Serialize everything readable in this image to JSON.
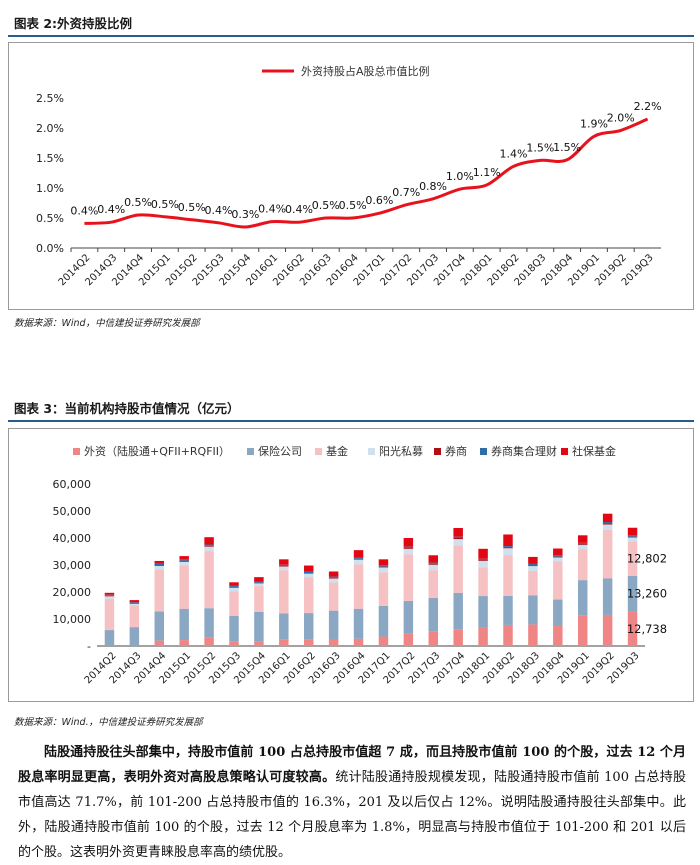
{
  "fig2": {
    "caption": "图表 2:外资持股比例",
    "source": "数据来源：Wind，中信建投证券研究发展部",
    "chart_data": {
      "type": "line",
      "title": "",
      "xlabel": "",
      "ylabel": "",
      "ylim": [
        0,
        2.5
      ],
      "yticks": [
        "0.0%",
        "0.5%",
        "1.0%",
        "1.5%",
        "2.0%",
        "2.5%"
      ],
      "categories": [
        "2014Q2",
        "2014Q3",
        "2014Q4",
        "2015Q1",
        "2015Q2",
        "2015Q3",
        "2015Q4",
        "2016Q1",
        "2016Q2",
        "2016Q3",
        "2016Q4",
        "2017Q1",
        "2017Q2",
        "2017Q3",
        "2017Q4",
        "2018Q1",
        "2018Q2",
        "2018Q3",
        "2018Q4",
        "2019Q1",
        "2019Q2",
        "2019Q3"
      ],
      "series": [
        {
          "name": "外资持股占A股总市值比例",
          "color": "#e8121d",
          "values": [
            0.41,
            0.43,
            0.55,
            0.52,
            0.47,
            0.42,
            0.35,
            0.44,
            0.43,
            0.5,
            0.5,
            0.58,
            0.72,
            0.82,
            0.98,
            1.05,
            1.36,
            1.46,
            1.47,
            1.86,
            1.96,
            2.15
          ],
          "labels": [
            "0.4%",
            "0.4%",
            "0.5%",
            "0.5%",
            "0.5%",
            "0.4%",
            "0.3%",
            "0.4%",
            "0.4%",
            "0.5%",
            "0.5%",
            "0.6%",
            "0.7%",
            "0.8%",
            "1.0%",
            "1.1%",
            "1.4%",
            "1.5%",
            "1.5%",
            "1.9%",
            "2.0%",
            "2.2%"
          ]
        }
      ],
      "legend": "top-center"
    }
  },
  "fig3": {
    "caption": "图表 3：当前机构持股市值情况（亿元）",
    "source": "数据来源：Wind.，中信建投证券研究发展部",
    "chart_data": {
      "type": "bar",
      "stacked": true,
      "title": "",
      "xlabel": "",
      "ylabel": "",
      "ylim": [
        0,
        60000
      ],
      "yticks": [
        "-",
        "10,000",
        "20,000",
        "30,000",
        "40,000",
        "50,000",
        "60,000"
      ],
      "categories": [
        "2014Q2",
        "2014Q3",
        "2014Q4",
        "2015Q1",
        "2015Q2",
        "2015Q3",
        "2015Q4",
        "2016Q1",
        "2016Q2",
        "2016Q3",
        "2016Q4",
        "2017Q1",
        "2017Q2",
        "2017Q3",
        "2017Q4",
        "2018Q1",
        "2018Q2",
        "2018Q3",
        "2018Q4",
        "2019Q1",
        "2019Q2",
        "2019Q3"
      ],
      "legend": "top",
      "series": [
        {
          "name": "外资（陆股通+QFII+RQFII）",
          "color": "#f08585",
          "values": [
            0,
            0,
            2000,
            2200,
            3200,
            1800,
            1700,
            2300,
            2300,
            2600,
            2700,
            3500,
            4500,
            5300,
            6200,
            6700,
            7800,
            8000,
            7400,
            11200,
            11500,
            12738
          ]
        },
        {
          "name": "保险公司",
          "color": "#8aa8c4",
          "values": [
            5900,
            7000,
            10800,
            11600,
            10800,
            9400,
            10900,
            9800,
            9900,
            10500,
            11100,
            11400,
            12200,
            12500,
            13500,
            11800,
            10800,
            10800,
            9800,
            13200,
            13500,
            13260
          ]
        },
        {
          "name": "基金",
          "color": "#f6c1c3",
          "values": [
            11500,
            8000,
            15500,
            16000,
            21000,
            9000,
            9600,
            16000,
            13300,
            10400,
            16400,
            12400,
            17300,
            10300,
            17500,
            10600,
            15100,
            9000,
            14100,
            11500,
            18000,
            12802
          ]
        },
        {
          "name": "阳光私募",
          "color": "#cfe0ef",
          "values": [
            1000,
            600,
            1400,
            1400,
            1800,
            1400,
            1000,
            1300,
            1300,
            1500,
            1800,
            1800,
            2000,
            2000,
            2400,
            2400,
            2500,
            1800,
            1500,
            1500,
            2000,
            1400
          ]
        },
        {
          "name": "券商",
          "color": "#b00f16",
          "values": [
            200,
            200,
            300,
            400,
            300,
            300,
            200,
            200,
            200,
            200,
            300,
            300,
            300,
            300,
            400,
            300,
            300,
            300,
            300,
            300,
            400,
            300
          ]
        },
        {
          "name": "券商集合理财",
          "color": "#2f6ea5",
          "values": [
            400,
            400,
            500,
            500,
            500,
            500,
            500,
            500,
            500,
            500,
            500,
            500,
            500,
            500,
            500,
            500,
            500,
            500,
            500,
            500,
            500,
            500
          ]
        },
        {
          "name": "社保基金",
          "color": "#e30613",
          "values": [
            700,
            800,
            1000,
            1200,
            2700,
            1200,
            1600,
            2000,
            2300,
            1900,
            2700,
            2200,
            3200,
            2700,
            3200,
            3700,
            4300,
            2600,
            2500,
            2800,
            3100,
            2800
          ]
        }
      ],
      "annotations": [
        "12,802",
        "13,260",
        "12,738"
      ]
    }
  },
  "para": {
    "bold": "陆股通持股往头部集中，持股市值前 100 占总持股市值超 7 成，而且持股市值前 100 的个股，过去 12 个月股息率明显更高，表明外资对高股息策略认可度较高。",
    "body": "统计陆股通持股规模发现，陆股通持股市值前 100 占总持股市值高达 71.7%，前 101-200 占总持股市值的 16.3%，201 及以后仅占 12%。说明陆股通持股往头部集中。此外，陆股通持股市值前 100 的个股，过去 12 个月股息率为 1.8%，明显高与持股市值位于 101-200 和 201 以后的个股。这表明外资更青睐股息率高的绩优股。"
  }
}
